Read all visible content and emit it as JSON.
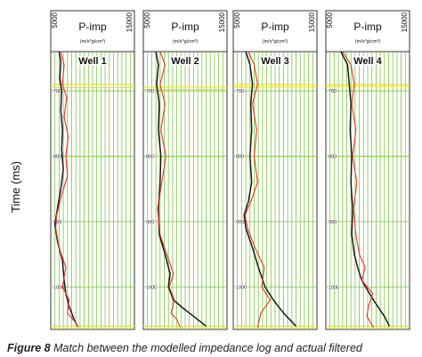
{
  "chart_data": {
    "type": "line",
    "ylabel": "Time (ms)",
    "y_ticks": [
      "700",
      "800",
      "900",
      "1000"
    ],
    "ylim": [
      640,
      1065
    ],
    "invert_y": true,
    "grid": true,
    "colors": {
      "grid": "#7cc443",
      "modelled": "#1a1a1a",
      "actual": "#ee3322",
      "horizon": "#e8e24a"
    },
    "panels": [
      {
        "title": "Well 1",
        "header": "P-imp",
        "unit": "(m/s*g/cm³)",
        "xmin_label": "5000",
        "xmax_label": "15000",
        "xlim": [
          5000,
          15000
        ],
        "horizons": [
          690,
          695,
          1060
        ],
        "series": [
          {
            "role": "modelled",
            "points": [
              [
                6000,
                640
              ],
              [
                6200,
                655
              ],
              [
                6100,
                680
              ],
              [
                6300,
                700
              ],
              [
                6200,
                730
              ],
              [
                6400,
                760
              ],
              [
                6300,
                790
              ],
              [
                6500,
                820
              ],
              [
                6200,
                850
              ],
              [
                5800,
                880
              ],
              [
                5500,
                905
              ],
              [
                5800,
                930
              ],
              [
                6400,
                960
              ],
              [
                6600,
                990
              ],
              [
                6800,
                1010
              ],
              [
                7200,
                1030
              ],
              [
                7800,
                1050
              ],
              [
                8200,
                1060
              ]
            ]
          },
          {
            "role": "actual",
            "points": [
              [
                6200,
                640
              ],
              [
                6600,
                660
              ],
              [
                6400,
                690
              ],
              [
                6900,
                710
              ],
              [
                6600,
                740
              ],
              [
                7100,
                770
              ],
              [
                6800,
                800
              ],
              [
                7000,
                830
              ],
              [
                6300,
                860
              ],
              [
                5700,
                890
              ],
              [
                5600,
                910
              ],
              [
                6000,
                940
              ],
              [
                6800,
                970
              ],
              [
                6400,
                1000
              ],
              [
                7200,
                1020
              ],
              [
                7000,
                1040
              ],
              [
                8000,
                1055
              ],
              [
                8300,
                1062
              ]
            ]
          }
        ]
      },
      {
        "title": "Well 2",
        "header": "P-imp",
        "unit": "(m/s*g/cm³)",
        "xmin_label": "5000",
        "xmax_label": "15000",
        "xlim": [
          5000,
          15000
        ],
        "horizons": [
          694,
          698,
          1060
        ],
        "series": [
          {
            "role": "modelled",
            "points": [
              [
                6500,
                640
              ],
              [
                6800,
                660
              ],
              [
                6600,
                690
              ],
              [
                6900,
                720
              ],
              [
                6800,
                760
              ],
              [
                7100,
                800
              ],
              [
                7000,
                840
              ],
              [
                6800,
                880
              ],
              [
                6900,
                920
              ],
              [
                7600,
                950
              ],
              [
                8200,
                980
              ],
              [
                8000,
                1000
              ],
              [
                8600,
                1020
              ],
              [
                10000,
                1035
              ],
              [
                11000,
                1045
              ],
              [
                12500,
                1060
              ]
            ]
          },
          {
            "role": "actual",
            "points": [
              [
                7000,
                640
              ],
              [
                7600,
                660
              ],
              [
                7000,
                690
              ],
              [
                7600,
                720
              ],
              [
                7100,
                760
              ],
              [
                7700,
                800
              ],
              [
                7200,
                840
              ],
              [
                6700,
                880
              ],
              [
                7000,
                920
              ],
              [
                7800,
                950
              ],
              [
                8600,
                980
              ],
              [
                8100,
                1000
              ],
              [
                8700,
                1020
              ],
              [
                8300,
                1040
              ],
              [
                9000,
                1050
              ],
              [
                9400,
                1062
              ]
            ]
          }
        ]
      },
      {
        "title": "Well 3",
        "header": "P-imp",
        "unit": "(m/s*g/cm³)",
        "xmin_label": "5000",
        "xmax_label": "15000",
        "xlim": [
          5000,
          15000
        ],
        "horizons": [
          690,
          694,
          1060
        ],
        "series": [
          {
            "role": "modelled",
            "points": [
              [
                6500,
                640
              ],
              [
                7000,
                660
              ],
              [
                7300,
                690
              ],
              [
                7100,
                720
              ],
              [
                7200,
                760
              ],
              [
                7000,
                800
              ],
              [
                7200,
                840
              ],
              [
                6800,
                870
              ],
              [
                6300,
                890
              ],
              [
                6500,
                910
              ],
              [
                7300,
                940
              ],
              [
                8000,
                970
              ],
              [
                8800,
                1000
              ],
              [
                9800,
                1020
              ],
              [
                11000,
                1040
              ],
              [
                12500,
                1060
              ]
            ]
          },
          {
            "role": "actual",
            "points": [
              [
                6800,
                640
              ],
              [
                7500,
                660
              ],
              [
                7900,
                690
              ],
              [
                7300,
                720
              ],
              [
                7800,
                760
              ],
              [
                7500,
                800
              ],
              [
                7900,
                840
              ],
              [
                7100,
                870
              ],
              [
                6400,
                890
              ],
              [
                6700,
                910
              ],
              [
                7600,
                940
              ],
              [
                8700,
                970
              ],
              [
                8400,
                1000
              ],
              [
                9400,
                1020
              ],
              [
                8300,
                1040
              ],
              [
                7900,
                1062
              ]
            ]
          }
        ]
      },
      {
        "title": "Well 4",
        "header": "P-imp",
        "unit": "(m/s*g/cm³)",
        "xmin_label": "5000",
        "xmax_label": "15000",
        "xlim": [
          5000,
          15000
        ],
        "horizons": [
          690,
          693,
          1060
        ],
        "series": [
          {
            "role": "modelled",
            "points": [
              [
                6800,
                640
              ],
              [
                7600,
                660
              ],
              [
                7800,
                690
              ],
              [
                8000,
                720
              ],
              [
                7900,
                760
              ],
              [
                8100,
                800
              ],
              [
                8000,
                840
              ],
              [
                8200,
                880
              ],
              [
                8100,
                920
              ],
              [
                8400,
                950
              ],
              [
                8800,
                970
              ],
              [
                9300,
                990
              ],
              [
                10200,
                1010
              ],
              [
                11200,
                1030
              ],
              [
                12000,
                1045
              ],
              [
                12600,
                1060
              ]
            ]
          },
          {
            "role": "actual",
            "points": [
              [
                7000,
                640
              ],
              [
                8000,
                660
              ],
              [
                8400,
                690
              ],
              [
                8100,
                720
              ],
              [
                8600,
                760
              ],
              [
                8200,
                800
              ],
              [
                8700,
                840
              ],
              [
                8300,
                880
              ],
              [
                8600,
                920
              ],
              [
                9000,
                950
              ],
              [
                9700,
                970
              ],
              [
                9300,
                990
              ],
              [
                10600,
                1010
              ],
              [
                10100,
                1030
              ],
              [
                9900,
                1045
              ],
              [
                10700,
                1062
              ]
            ]
          }
        ]
      }
    ]
  },
  "caption": {
    "label": "Figure 8",
    "text": " Match between the modelled impedance log and actual filtered"
  }
}
